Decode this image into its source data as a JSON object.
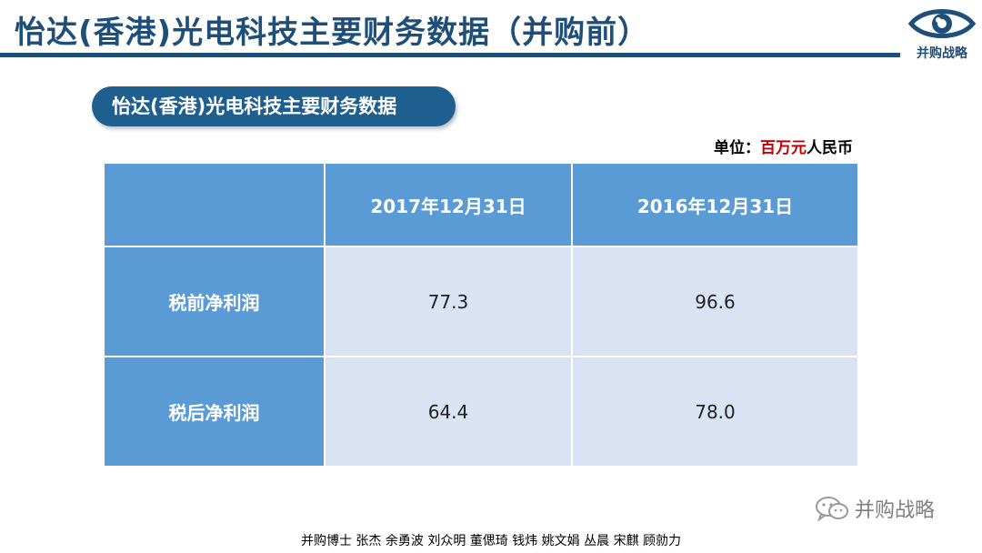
{
  "header": {
    "title": "怡达(香港)光电科技主要财务数据（并购前）",
    "logo_label": "并购战略"
  },
  "section": {
    "title": "怡达(香港)光电科技主要财务数据"
  },
  "unit": {
    "prefix": "单位：",
    "highlight": "百万元",
    "suffix": "人民币"
  },
  "table": {
    "columns": [
      "",
      "2017年12月31日",
      "2016年12月31日"
    ],
    "rows": [
      {
        "label": "税前净利润",
        "values": [
          "77.3",
          "96.6"
        ]
      },
      {
        "label": "税后净利润",
        "values": [
          "64.4",
          "78.0"
        ]
      }
    ]
  },
  "watermark": {
    "text": "并购战略"
  },
  "footer": {
    "authors": "并购博士 张杰 余勇波 刘众明 董偲琦 钱炜 姚文娟 丛晨 宋麒 顾勍力"
  },
  "colors": {
    "title": "#1f4e79",
    "header_fill": "#5b9bd5",
    "cell_fill": "#dae3f3",
    "highlight": "#c00000"
  }
}
